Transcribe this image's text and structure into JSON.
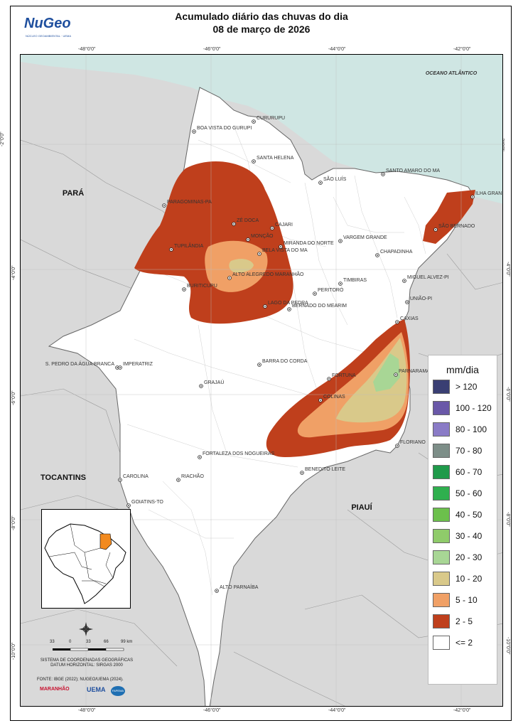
{
  "header": {
    "title_line1": "Acumulado diário das chuvas do dia",
    "title_line2": "08 de março de 2026",
    "logo_text": "NuGeo",
    "logo_subtext": "NÚCLEO GEOAMBIENTAL · UEMA"
  },
  "map": {
    "ocean_label": "OCEANO ATLÂNTICO",
    "states": [
      "PARÁ",
      "TOCANTINS",
      "PIAUÍ"
    ],
    "cities": [
      "BOA VISTA DO GURUPI",
      "CURURUPU",
      "SANTA HELENA",
      "SÃO LUÍS",
      "SANTO AMARO DO MA",
      "PARAGOMINAS-PA",
      "ZÉ DOCA",
      "CAJARI",
      "MONÇÃO",
      "MIRANDA DO NORTE",
      "ILHA GRANDE-PI",
      "SÃO BERNADO",
      "VARGEM GRANDE",
      "TUPILÂNDIA",
      "BELA VISTA DO MA",
      "CHAPADINHA",
      "ALTO ALEGREDO MARANHÃO",
      "MIGUEL ALVEZ-PI",
      "BURITICUPU",
      "TIMBIRAS",
      "PERITORÓ",
      "UNIÃO-PI",
      "LAGO DA PEDRA",
      "BERNADO DO MEARIM",
      "CAXIAS",
      "S. PEDRO DA ÁGUA BRANCA",
      "IMPERATRIZ",
      "BARRA DO CORDA",
      "FORTUNA",
      "PARNARAMA",
      "GRAJAÚ",
      "COLINAS",
      "FLORIANO",
      "FORTALEZA DOS NOGUEIRAS",
      "BENEDITO LEITE",
      "CAROLINA",
      "RIACHÃO",
      "GOIATINS-TO",
      "ALTO PARNAÍBA"
    ]
  },
  "coords": {
    "lon": [
      "-48°0'0\"",
      "-46°0'0\"",
      "-44°0'0\"",
      "-42°0'0\""
    ],
    "lat": [
      "-2°0'0\"",
      "-4°0'0\"",
      "-6°0'0\"",
      "-8°0'0\"",
      "-10°0'0\""
    ]
  },
  "legend": {
    "title": "mm/dia",
    "items": [
      {
        "label": "> 120",
        "color": "#3a3f73"
      },
      {
        "label": "100 - 120",
        "color": "#6a58a8"
      },
      {
        "label": "80 - 100",
        "color": "#8a7bc6"
      },
      {
        "label": "70 - 80",
        "color": "#7d8e88"
      },
      {
        "label": "60 - 70",
        "color": "#1f9a4a"
      },
      {
        "label": "50 - 60",
        "color": "#2fb04e"
      },
      {
        "label": "40 - 50",
        "color": "#6cc04c"
      },
      {
        "label": "30 - 40",
        "color": "#8fcb6a"
      },
      {
        "label": "20 - 30",
        "color": "#a8d695"
      },
      {
        "label": "10 - 20",
        "color": "#d9c98a"
      },
      {
        "label": "5 - 10",
        "color": "#f0a066"
      },
      {
        "label": "2 - 5",
        "color": "#bf3f1c"
      },
      {
        "label": "<= 2",
        "color": "#ffffff"
      }
    ]
  },
  "scale": {
    "ticks": [
      "33",
      "0",
      "33",
      "66",
      "99 km"
    ]
  },
  "info": {
    "line1": "SISTEMA DE COORDENADAS GEOGRÁFICAS",
    "line2": "DATUM HORIZONTAL: SIRGAS 2000",
    "fonte": "FONTE: IBGE (2022); NUGEO/UEMA (2024)."
  },
  "partners": [
    "MARANHÃO",
    "UEMA",
    "FAPEMA"
  ],
  "colors": {
    "ocean": "#cfe6e3",
    "outside": "#d9d9d9",
    "state": "#ffffff",
    "highlight": "#f28a1f"
  }
}
